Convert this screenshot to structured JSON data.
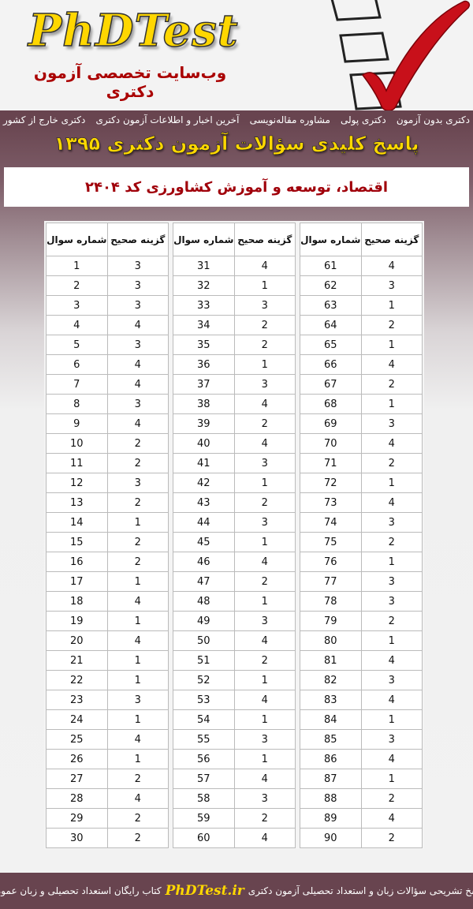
{
  "header": {
    "logo": "PhDTest",
    "tagline": "وب‌سایت تخصصی آزمون دکتری"
  },
  "nav": {
    "items": [
      "دکتری بدون آزمون",
      "دکتری پولی",
      "مشاوره مقاله‌نویسی",
      "آخرین اخبار و اطلاعات آزمون دکتری",
      "دکتری خارج از کشور"
    ]
  },
  "title": "پاسخ کلیدی سؤالات آزمون دکتری ۱۳۹۵",
  "subtitle": "اقتصاد، توسعه و آموزش کشاورزی کد ۲۴۰۴",
  "table": {
    "headers": {
      "question": "شماره سوال",
      "answer": "گزینه صحیح"
    },
    "answers": [
      3,
      3,
      3,
      4,
      3,
      4,
      4,
      3,
      4,
      2,
      2,
      3,
      2,
      1,
      2,
      2,
      1,
      4,
      1,
      4,
      1,
      1,
      3,
      1,
      4,
      1,
      2,
      4,
      2,
      2,
      4,
      1,
      3,
      2,
      2,
      1,
      3,
      4,
      2,
      4,
      3,
      1,
      2,
      3,
      1,
      4,
      2,
      1,
      3,
      4,
      2,
      1,
      4,
      1,
      3,
      1,
      4,
      3,
      2,
      4,
      4,
      3,
      1,
      2,
      1,
      4,
      2,
      1,
      3,
      4,
      2,
      1,
      4,
      3,
      2,
      1,
      3,
      3,
      2,
      1,
      4,
      3,
      4,
      1,
      3,
      4,
      1,
      2,
      4,
      2
    ]
  },
  "footer": {
    "before": "پاسخ تشریحی سؤالات زبان و استعداد تحصیلی آزمون دکتری",
    "brand": "PhDTest.ir",
    "after": "کتاب رایگان استعداد تحصیلی و زبان عمومی"
  },
  "colors": {
    "bar": "#68444f",
    "accent": "#ffd700",
    "subtitle": "#a0000a"
  }
}
